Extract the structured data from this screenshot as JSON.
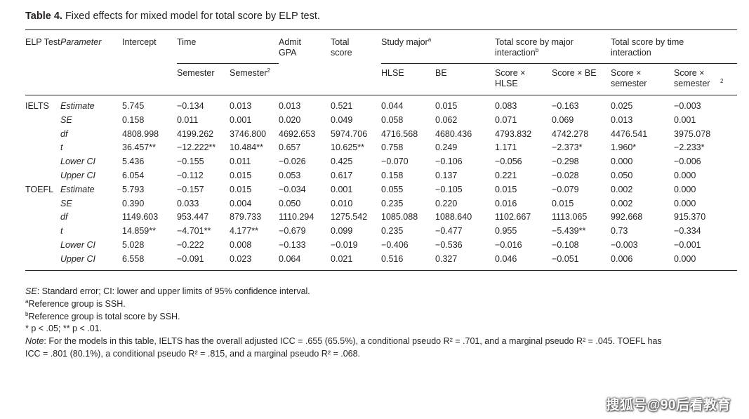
{
  "title": {
    "lead": "Table 4.",
    "text": "Fixed effects for mixed model for total score by ELP test."
  },
  "header": {
    "elp_test": "ELP Test",
    "parameter": "Parameter",
    "intercept": "Intercept",
    "time": "Time",
    "admit_gpa": "Admit GPA",
    "total_score": "Total score",
    "study_major": "Study major",
    "study_major_sup": "a",
    "major_interaction": "Total score by major interaction",
    "major_interaction_sup": "b",
    "time_interaction": "Total score by time interaction",
    "sub_semester": "Semester",
    "sub_semester2": "Semester",
    "sub_semester2_sup": "2",
    "sub_hlse": "HLSE",
    "sub_be": "BE",
    "sub_score_hlse": "Score × HLSE",
    "sub_score_be": "Score × BE",
    "sub_score_semester": "Score × semester",
    "sub_score_semester2": "Score × semester",
    "sub_score_semester2_sup": "2"
  },
  "groups": [
    {
      "test": "IELTS",
      "rows": [
        {
          "param": "Estimate",
          "cells": [
            "5.745",
            "−0.134",
            "0.013",
            "0.013",
            "0.521",
            "0.044",
            "0.015",
            "0.083",
            "−0.163",
            "0.025",
            "−0.003"
          ]
        },
        {
          "param": "SE",
          "cells": [
            "0.158",
            "0.011",
            "0.001",
            "0.020",
            "0.049",
            "0.058",
            "0.062",
            "0.071",
            "0.069",
            "0.013",
            "0.001"
          ]
        },
        {
          "param": "df",
          "cells": [
            "4808.998",
            "4199.262",
            "3746.800",
            "4692.653",
            "5974.706",
            "4716.568",
            "4680.436",
            "4793.832",
            "4742.278",
            "4476.541",
            "3975.078"
          ]
        },
        {
          "param": "t",
          "cells": [
            "36.457**",
            "−12.222**",
            "10.484**",
            "0.657",
            "10.625**",
            "0.758",
            "0.249",
            "1.171",
            "−2.373*",
            "1.960*",
            "−2.233*"
          ]
        },
        {
          "param": "Lower CI",
          "cells": [
            "5.436",
            "−0.155",
            "0.011",
            "−0.026",
            "0.425",
            "−0.070",
            "−0.106",
            "−0.056",
            "−0.298",
            "0.000",
            "−0.006"
          ]
        },
        {
          "param": "Upper CI",
          "cells": [
            "6.054",
            "−0.112",
            "0.015",
            "0.053",
            "0.617",
            "0.158",
            "0.137",
            "0.221",
            "−0.028",
            "0.050",
            "0.000"
          ]
        }
      ]
    },
    {
      "test": "TOEFL",
      "rows": [
        {
          "param": "Estimate",
          "cells": [
            "5.793",
            "−0.157",
            "0.015",
            "−0.034",
            "0.001",
            "0.055",
            "−0.105",
            "0.015",
            "−0.079",
            "0.002",
            "0.000"
          ]
        },
        {
          "param": "SE",
          "cells": [
            "0.390",
            "0.033",
            "0.004",
            "0.050",
            "0.010",
            "0.235",
            "0.220",
            "0.016",
            "0.015",
            "0.002",
            "0.000"
          ]
        },
        {
          "param": "df",
          "cells": [
            "1149.603",
            "953.447",
            "879.733",
            "1110.294",
            "1275.542",
            "1085.088",
            "1088.640",
            "1102.667",
            "1113.065",
            "992.668",
            "915.370"
          ]
        },
        {
          "param": "t",
          "cells": [
            "14.859**",
            "−4.701**",
            "4.177**",
            "−0.679",
            "0.099",
            "0.235",
            "−0.477",
            "0.955",
            "−5.439**",
            "0.73",
            "−0.334"
          ]
        },
        {
          "param": "Lower CI",
          "cells": [
            "5.028",
            "−0.222",
            "0.008",
            "−0.133",
            "−0.019",
            "−0.406",
            "−0.536",
            "−0.016",
            "−0.108",
            "−0.003",
            "−0.001"
          ]
        },
        {
          "param": "Upper CI",
          "cells": [
            "6.558",
            "−0.091",
            "0.023",
            "0.064",
            "0.021",
            "0.516",
            "0.327",
            "0.046",
            "−0.051",
            "0.006",
            "0.000"
          ]
        }
      ]
    }
  ],
  "notes": {
    "se_label": "SE",
    "se_text": ": Standard error; CI: lower and upper limits of 95% confidence interval.",
    "a_sup": "a",
    "a_text": "Reference group is SSH.",
    "b_sup": "b",
    "b_text": "Reference group is total score by SSH.",
    "sig1": "* p < .05; ** p < .01.",
    "note_label": "Note",
    "note_line1": ": For the models in this table, IELTS has the overall adjusted ICC = .655 (65.5%), a conditional pseudo R² = .701, and a marginal pseudo R² = .045. TOEFL has",
    "note_line2": "ICC = .801 (80.1%), a conditional pseudo R² = .815, and a marginal pseudo R² = .068."
  },
  "watermark": "搜狐号@90后看教育"
}
